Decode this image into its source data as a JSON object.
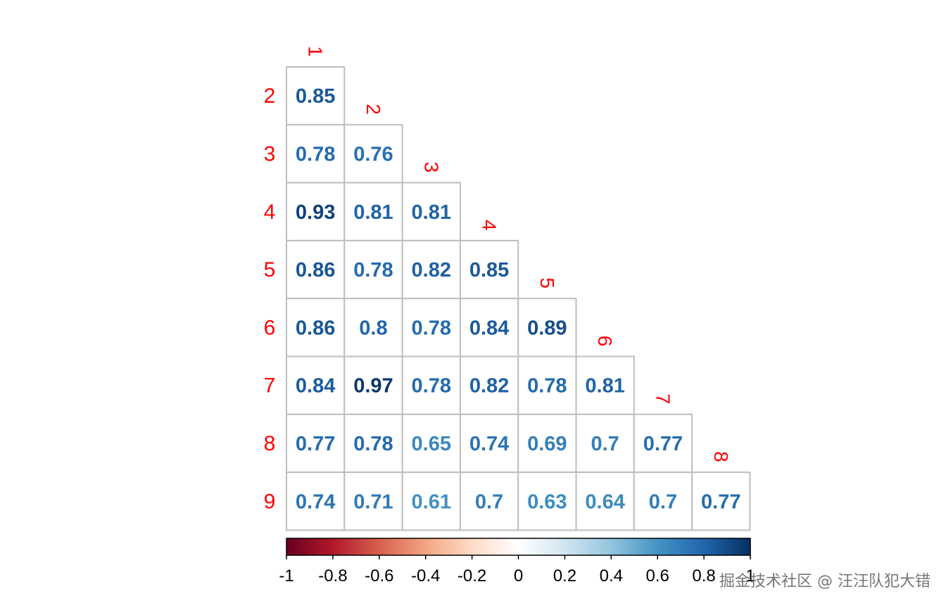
{
  "watermark": "掘金技术社区 @ 汪汪队犯大错",
  "chart_data": {
    "type": "heatmap",
    "layout": "lower-triangle correlation matrix",
    "row_labels": [
      "2",
      "3",
      "4",
      "5",
      "6",
      "7",
      "8",
      "9"
    ],
    "col_labels": [
      "1",
      "2",
      "3",
      "4",
      "5",
      "6",
      "7",
      "8"
    ],
    "values": [
      [
        0.85
      ],
      [
        0.78,
        0.76
      ],
      [
        0.93,
        0.81,
        0.81
      ],
      [
        0.86,
        0.78,
        0.82,
        0.85
      ],
      [
        0.86,
        0.8,
        0.78,
        0.84,
        0.89
      ],
      [
        0.84,
        0.97,
        0.78,
        0.82,
        0.78,
        0.81
      ],
      [
        0.77,
        0.78,
        0.65,
        0.74,
        0.69,
        0.7,
        0.77
      ],
      [
        0.74,
        0.71,
        0.61,
        0.7,
        0.63,
        0.64,
        0.7,
        0.77
      ]
    ],
    "colorbar": {
      "range": [
        -1,
        1
      ],
      "tick_labels": [
        "-1",
        "-0.8",
        "-0.6",
        "-0.4",
        "-0.2",
        "0",
        "0.2",
        "0.4",
        "0.6",
        "0.8",
        "1"
      ],
      "colors": [
        "#67001F",
        "#B2182B",
        "#D6604D",
        "#F4A582",
        "#FDDBC7",
        "#FFFFFF",
        "#D1E5F0",
        "#92C5DE",
        "#4393C3",
        "#2166AC",
        "#053061"
      ]
    },
    "label_color": "#FF0000",
    "grid_color": "#BEBEBE"
  }
}
